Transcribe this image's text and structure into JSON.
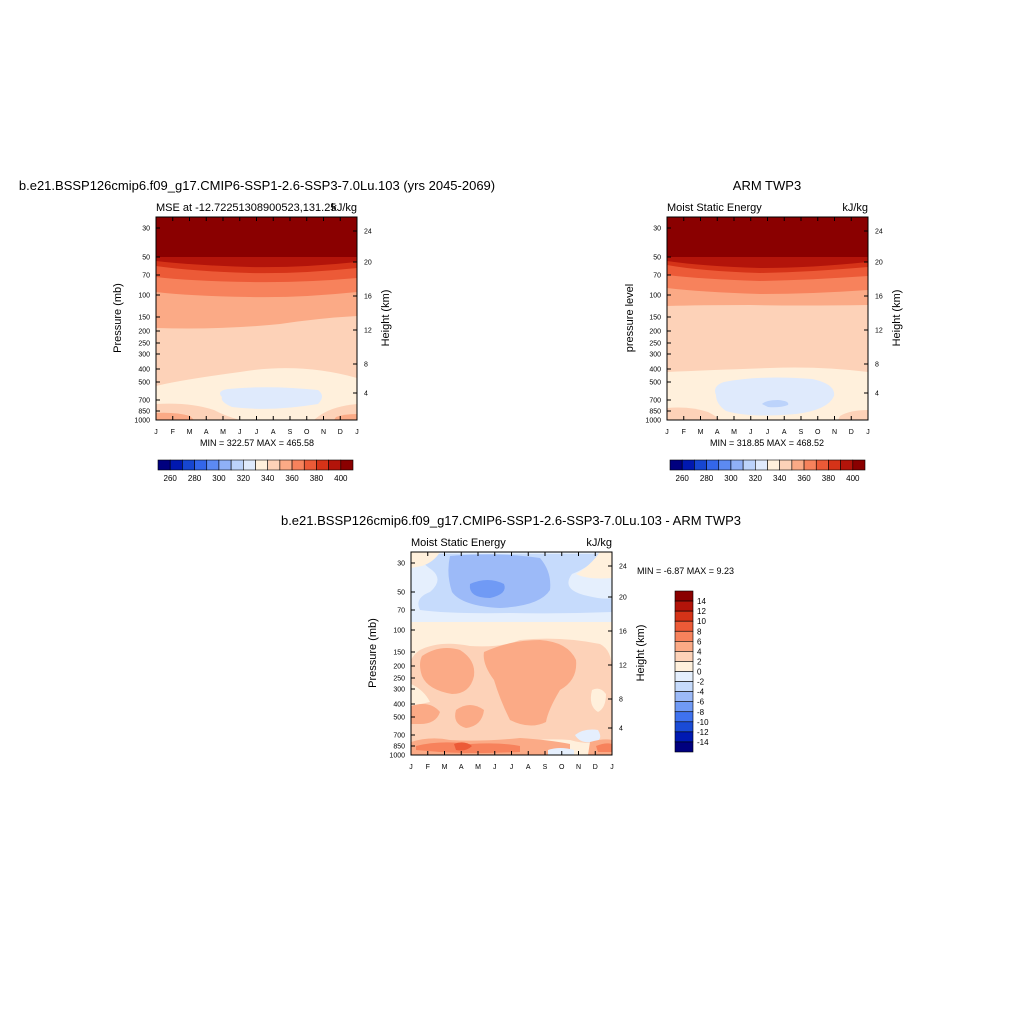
{
  "colors": {
    "mse_scale": [
      "#00007f",
      "#0018b0",
      "#1646d1",
      "#3366ea",
      "#5c8af2",
      "#8fb0f7",
      "#bcd3fb",
      "#dfeafc",
      "#fff0dc",
      "#fdd2b8",
      "#fbaa86",
      "#f7825c",
      "#ec5a37",
      "#d53318",
      "#b3140a",
      "#8a0000"
    ],
    "diff_scale": [
      "#00007f",
      "#0019b2",
      "#1a4bd6",
      "#3f72ef",
      "#709af5",
      "#9cbaf8",
      "#c6dbfc",
      "#e5effd",
      "#fff0dc",
      "#fdd2b8",
      "#fbaa86",
      "#f7825c",
      "#ec5a37",
      "#d53318",
      "#b3140a",
      "#8a0000"
    ]
  },
  "months": [
    "J",
    "F",
    "M",
    "A",
    "M",
    "J",
    "J",
    "A",
    "S",
    "O",
    "N",
    "D",
    "J"
  ],
  "pressure_ticks": [
    "30",
    "50",
    "70",
    "100",
    "150",
    "200",
    "250",
    "300",
    "400",
    "500",
    "700",
    "850",
    "1000"
  ],
  "height_ticks": [
    "24",
    "20",
    "16",
    "12",
    "8",
    "4"
  ],
  "panels": [
    {
      "id": "model",
      "title": "b.e21.BSSP126cmip6.f09_g17.CMIP6-SSP1-2.6-SSP3-7.0Lu.103 (yrs 2045-2069)",
      "left_label": "MSE at -12.72251308900523,131.25",
      "right_label": "kJ/kg",
      "ylabel": "Pressure (mb)",
      "y2label": "Height (km)",
      "stats": "MIN = 322.57 MAX = 465.58",
      "colorbar_labels": [
        "260",
        "280",
        "300",
        "320",
        "340",
        "360",
        "380",
        "400"
      ]
    },
    {
      "id": "obs",
      "title": "ARM TWP3",
      "left_label": "Moist Static Energy",
      "right_label": "kJ/kg",
      "ylabel": "pressure level",
      "y2label": "Height (km)",
      "stats": "MIN = 318.85 MAX = 468.52",
      "colorbar_labels": [
        "260",
        "280",
        "300",
        "320",
        "340",
        "360",
        "380",
        "400"
      ]
    },
    {
      "id": "diff",
      "title": "b.e21.BSSP126cmip6.f09_g17.CMIP6-SSP1-2.6-SSP3-7.0Lu.103 - ARM TWP3",
      "left_label": "Moist Static Energy",
      "right_label": "kJ/kg",
      "ylabel": "Pressure (mb)",
      "y2label": "Height (km)",
      "stats": "MIN =  -6.87 MAX =   9.23",
      "colorbar_labels": [
        "14",
        "12",
        "10",
        "8",
        "6",
        "4",
        "2",
        "0",
        "-2",
        "-4",
        "-6",
        "-8",
        "-10",
        "-12",
        "-14"
      ]
    }
  ],
  "chart_data": [
    {
      "type": "heatmap",
      "title": "b.e21.BSSP126cmip6.f09_g17.CMIP6-SSP1-2.6-SSP3-7.0Lu.103 (yrs 2045-2069)",
      "variable": "MSE at -12.72251308900523,131.25",
      "units": "kJ/kg",
      "x": [
        "J",
        "F",
        "M",
        "A",
        "M",
        "J",
        "J",
        "A",
        "S",
        "O",
        "N",
        "D",
        "J"
      ],
      "y_pressure_mb": [
        30,
        50,
        70,
        100,
        150,
        200,
        250,
        300,
        400,
        500,
        700,
        850,
        1000
      ],
      "y2_height_km": [
        24,
        20,
        16,
        12,
        8,
        4
      ],
      "levels": [
        260,
        270,
        280,
        290,
        300,
        310,
        320,
        330,
        340,
        350,
        360,
        370,
        380,
        390,
        400
      ],
      "min": 322.57,
      "max": 465.58,
      "values_by_level": {
        "30": 410,
        "50": 395,
        "70": 382,
        "100": 370,
        "150": 358,
        "200": 352,
        "300": 350,
        "500": 342,
        "700": 332,
        "850": 338,
        "1000": 352
      }
    },
    {
      "type": "heatmap",
      "title": "ARM TWP3",
      "variable": "Moist Static Energy",
      "units": "kJ/kg",
      "x": [
        "J",
        "F",
        "M",
        "A",
        "M",
        "J",
        "J",
        "A",
        "S",
        "O",
        "N",
        "D",
        "J"
      ],
      "y_pressure_mb": [
        30,
        50,
        70,
        100,
        150,
        200,
        250,
        300,
        400,
        500,
        700,
        850,
        1000
      ],
      "y2_height_km": [
        24,
        20,
        16,
        12,
        8,
        4
      ],
      "levels": [
        260,
        270,
        280,
        290,
        300,
        310,
        320,
        330,
        340,
        350,
        360,
        370,
        380,
        390,
        400
      ],
      "min": 318.85,
      "max": 468.52,
      "values_by_level": {
        "30": 410,
        "50": 395,
        "70": 380,
        "100": 368,
        "150": 352,
        "200": 350,
        "300": 348,
        "500": 340,
        "700": 330,
        "850": 338,
        "1000": 345
      }
    },
    {
      "type": "heatmap",
      "title": "b.e21.BSSP126cmip6.f09_g17.CMIP6-SSP1-2.6-SSP3-7.0Lu.103 - ARM TWP3",
      "variable": "Moist Static Energy",
      "units": "kJ/kg",
      "x": [
        "J",
        "F",
        "M",
        "A",
        "M",
        "J",
        "J",
        "A",
        "S",
        "O",
        "N",
        "D",
        "J"
      ],
      "y_pressure_mb": [
        30,
        50,
        70,
        100,
        150,
        200,
        250,
        300,
        400,
        500,
        700,
        850,
        1000
      ],
      "y2_height_km": [
        24,
        20,
        16,
        12,
        8,
        4
      ],
      "levels": [
        -14,
        -12,
        -10,
        -8,
        -6,
        -4,
        -2,
        0,
        2,
        4,
        6,
        8,
        10,
        12,
        14
      ],
      "min": -6.87,
      "max": 9.23,
      "values_by_level": {
        "30": -3,
        "50": -4,
        "70": -2,
        "100": 1,
        "150": 3,
        "200": 3,
        "300": 3,
        "500": 2,
        "700": 2,
        "850": 5,
        "1000": 3
      }
    }
  ]
}
